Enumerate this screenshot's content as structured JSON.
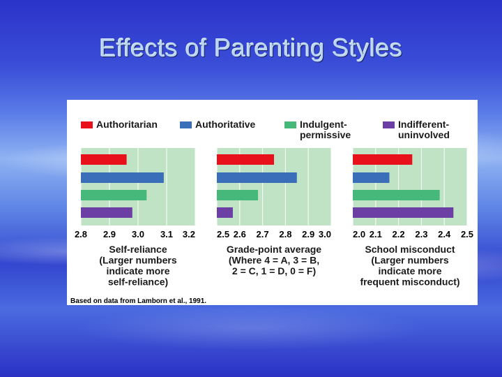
{
  "slide": {
    "title": "Effects of Parenting Styles"
  },
  "colors": {
    "Authoritarian": "#e8101a",
    "Authoritative": "#3b6eb8",
    "Indulgent-permissive": "#45b87a",
    "Indifferent-uninvolved": "#6b3fa3",
    "panel_bg": "#bfe3c4",
    "grid": "#ffffff"
  },
  "chart_data": {
    "type": "bar",
    "orientation": "horizontal",
    "grid": true,
    "legend_position": "top",
    "series_names": [
      "Authoritarian",
      "Authoritative",
      "Indulgent-permissive",
      "Indifferent-uninvolved"
    ],
    "legend": [
      {
        "key": "Authoritarian",
        "lines": [
          "Authoritarian"
        ]
      },
      {
        "key": "Authoritative",
        "lines": [
          "Authoritative"
        ]
      },
      {
        "key": "Indulgent-permissive",
        "lines": [
          "Indulgent-",
          "permissive"
        ]
      },
      {
        "key": "Indifferent-uninvolved",
        "lines": [
          "Indifferent-",
          "uninvolved"
        ]
      }
    ],
    "panels": [
      {
        "label_lines": [
          "Self-reliance",
          "(Larger numbers",
          "indicate more",
          "self-reliance)"
        ],
        "xlim": [
          2.8,
          3.2
        ],
        "ticks": [
          "2.8",
          "2.9",
          "3.0",
          "3.1",
          "3.2"
        ],
        "values": [
          2.96,
          3.09,
          3.03,
          2.98
        ]
      },
      {
        "label_lines": [
          "Grade-point average",
          "(Where 4 = A, 3 = B,",
          "2 = C, 1 = D, 0 = F)"
        ],
        "xlim": [
          2.5,
          3.0
        ],
        "ticks": [
          "2.5",
          "2.6",
          "2.7",
          "2.8",
          "2.9",
          "3.0"
        ],
        "values": [
          2.75,
          2.85,
          2.68,
          2.57
        ]
      },
      {
        "label_lines": [
          "School misconduct",
          "(Larger numbers",
          "indicate more",
          "frequent misconduct)"
        ],
        "xlim": [
          2.0,
          2.5
        ],
        "ticks": [
          "2.0",
          "2.1",
          "2.2",
          "2.3",
          "2.4",
          "2.5"
        ],
        "values": [
          2.26,
          2.16,
          2.38,
          2.44
        ]
      }
    ],
    "source": "Based on data from Lamborn et al., 1991."
  }
}
